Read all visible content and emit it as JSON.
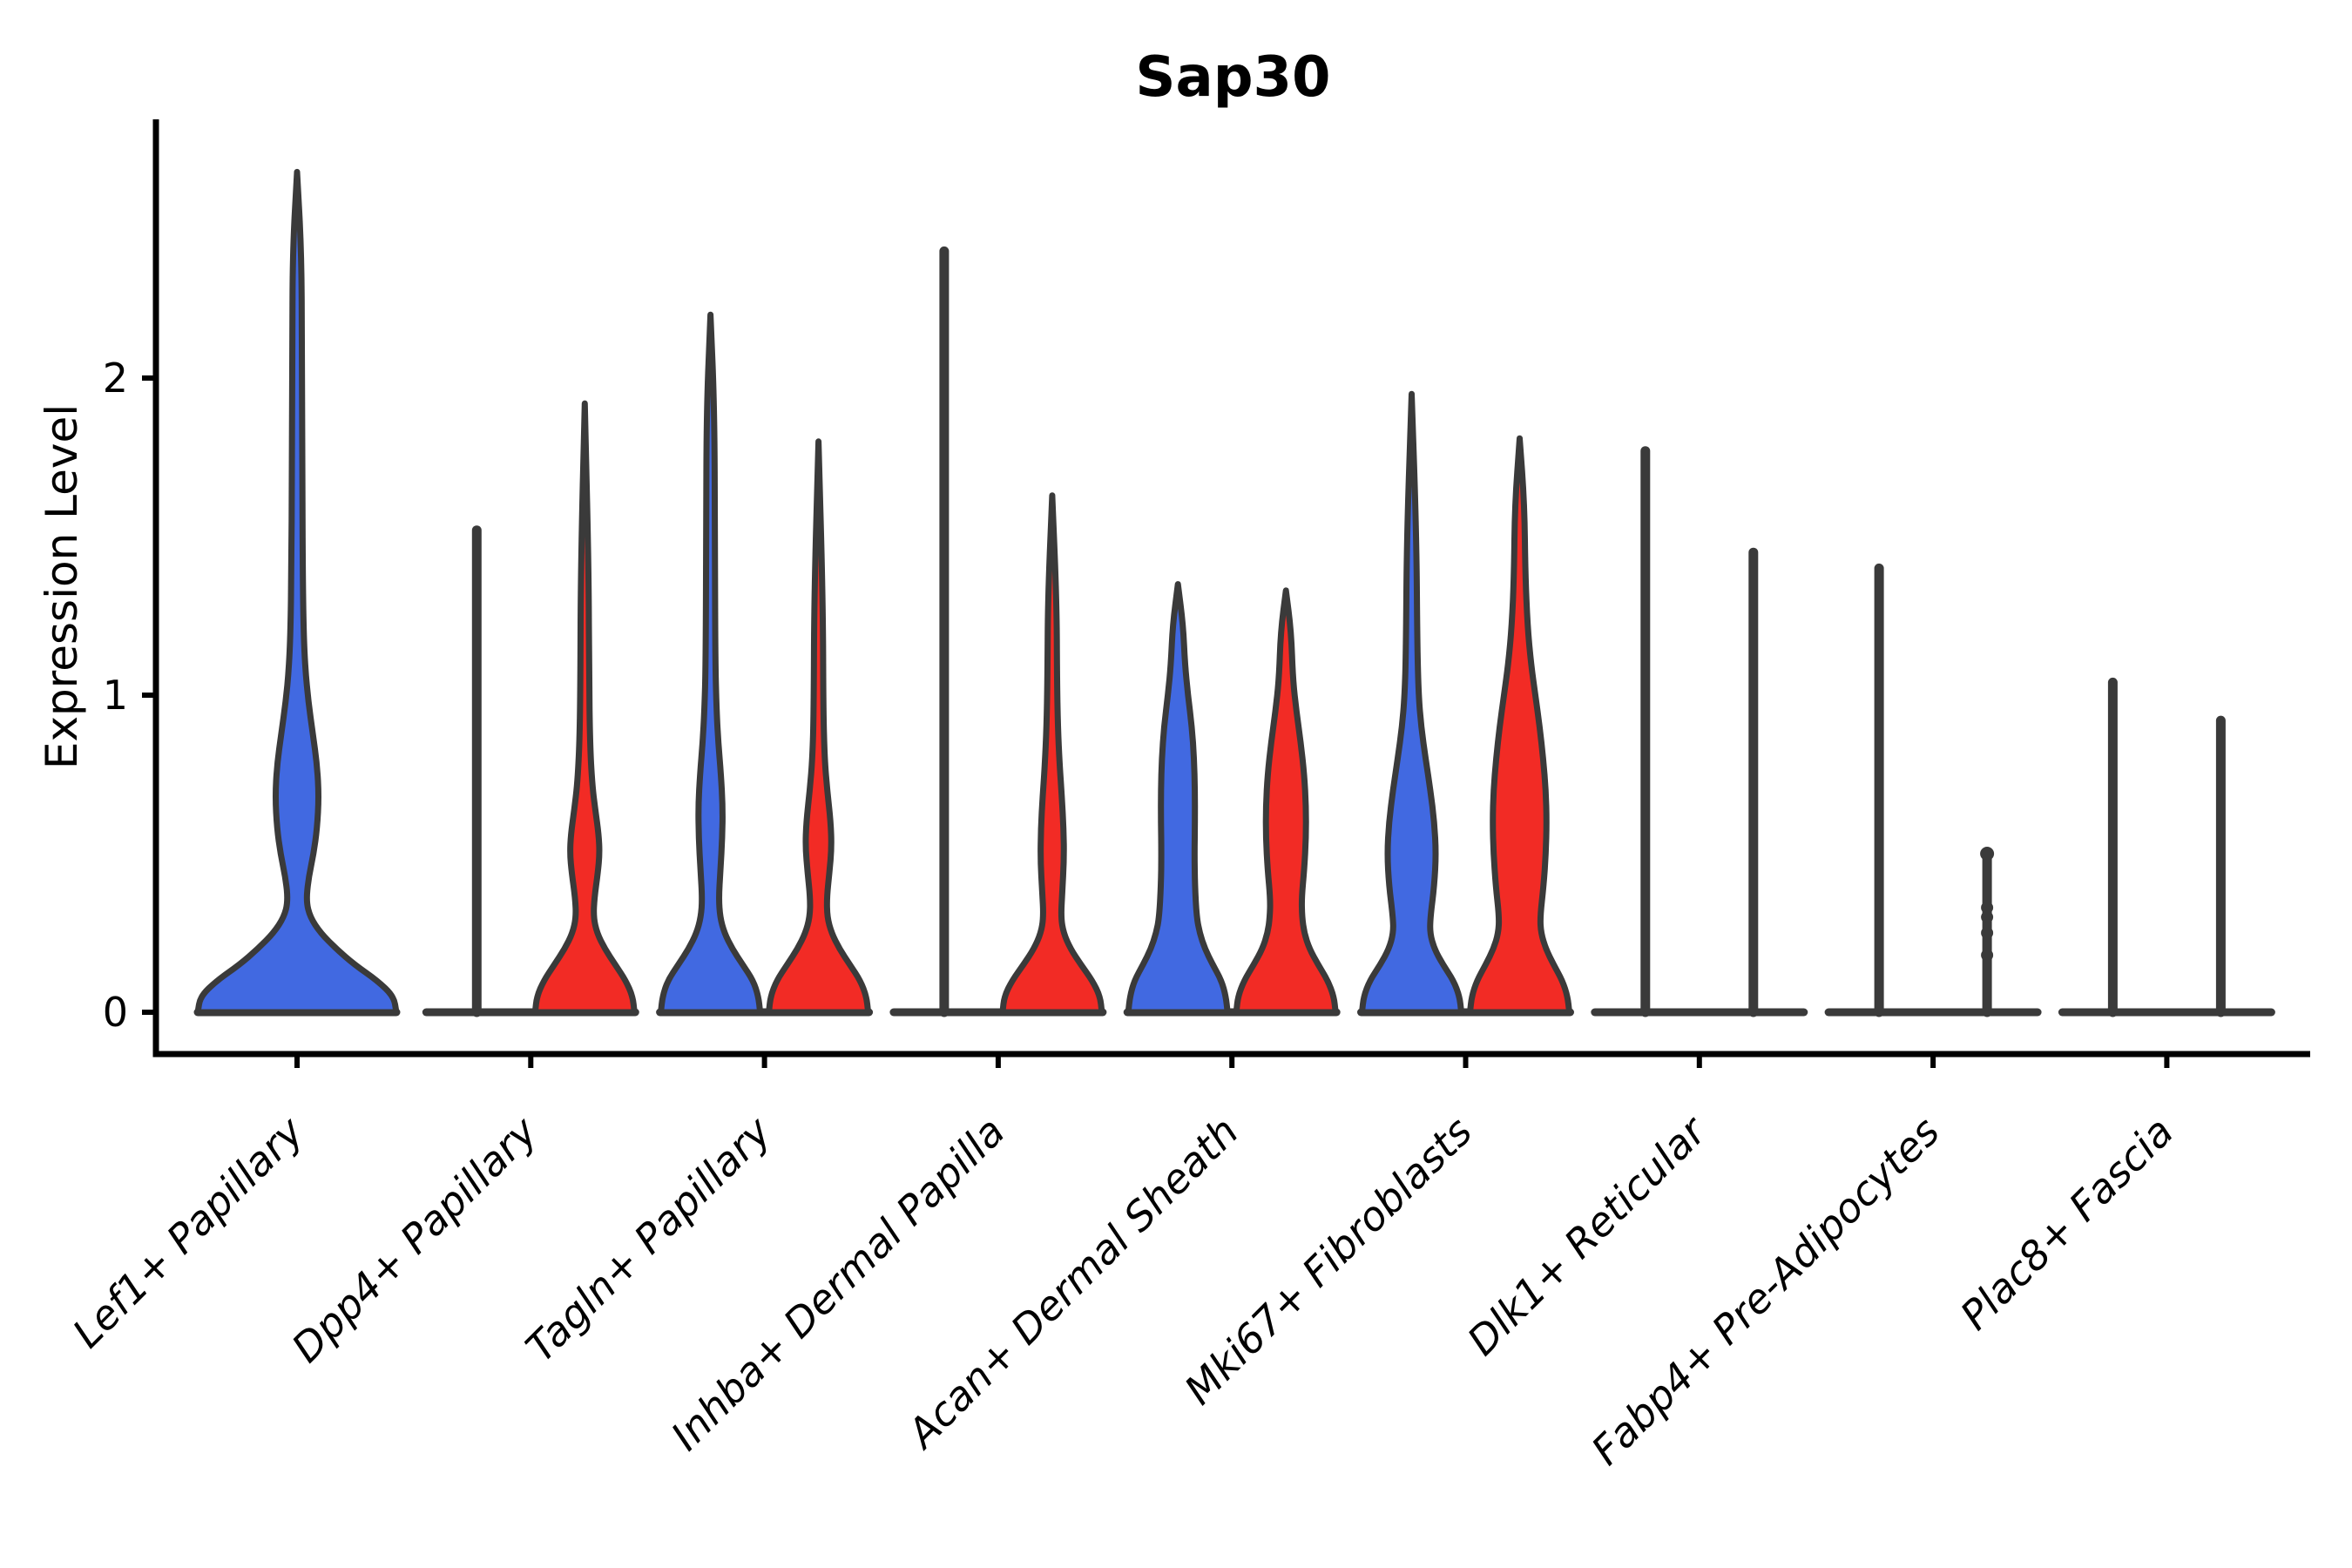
{
  "title": "Sap30",
  "y_axis": {
    "label": "Expression Level",
    "tick_labels": [
      "0",
      "1",
      "2"
    ]
  },
  "x_axis": {
    "labels": [
      "Lef1+ Papillary",
      "Dpp4+ Papillary",
      "Tagln+ Papillary",
      "Inhba+ Dermal Papilla",
      "Acan+ Dermal Sheath",
      "Mki67+ Fibroblasts",
      "Dlk1+ Reticular",
      "Fabp4+ Pre-Adipocytes",
      "Plac8+ Fascia"
    ]
  },
  "colors": {
    "group_a_fill": "#4169E1",
    "group_b_fill": "#F22B25",
    "violin_outline": "#3A3A3A",
    "axis": "#000000",
    "background": "#FFFFFF"
  },
  "chart_data": {
    "type": "violin",
    "title": "Sap30",
    "xlabel": "",
    "ylabel": "Expression Level",
    "ylim": [
      -0.13,
      2.81
    ],
    "yticks": [
      0,
      1,
      2
    ],
    "grid": false,
    "legend": "none",
    "groups": [
      "group_a_blue",
      "group_b_red"
    ],
    "categories": [
      "Lef1+ Papillary",
      "Dpp4+ Papillary",
      "Tagln+ Papillary",
      "Inhba+ Dermal Papilla",
      "Acan+ Dermal Sheath",
      "Mki67+ Fibroblasts",
      "Dlk1+ Reticular",
      "Fabp4+ Pre-Adipocytes",
      "Plac8+ Fascia"
    ],
    "series": [
      {
        "category": "Lef1+ Papillary",
        "violins": [
          {
            "group": "group_a_blue",
            "kind": "violin",
            "dx": 0,
            "max": 2.65,
            "profile": [
              [
                0,
                114
              ],
              [
                0.05,
                111
              ],
              [
                0.1,
                92
              ],
              [
                0.15,
                66
              ],
              [
                0.2,
                45
              ],
              [
                0.25,
                27
              ],
              [
                0.3,
                15
              ],
              [
                0.35,
                10.5
              ],
              [
                0.42,
                13
              ],
              [
                0.5,
                19
              ],
              [
                0.58,
                23
              ],
              [
                0.68,
                25
              ],
              [
                0.78,
                23
              ],
              [
                0.88,
                18
              ],
              [
                0.98,
                13
              ],
              [
                1.08,
                9.5
              ],
              [
                1.2,
                7.5
              ],
              [
                1.4,
                6.5
              ],
              [
                1.7,
                6
              ],
              [
                2.1,
                5.5
              ],
              [
                2.4,
                5
              ],
              [
                2.65,
                0
              ]
            ]
          }
        ]
      },
      {
        "category": "Dpp4+ Papillary",
        "violins": [
          {
            "group": "group_a_blue",
            "kind": "line",
            "dx": -62,
            "max": 1.52
          },
          {
            "group": "group_b_red",
            "kind": "violin",
            "dx": 62,
            "max": 1.92,
            "profile": [
              [
                0,
                57
              ],
              [
                0.05,
                55
              ],
              [
                0.1,
                47
              ],
              [
                0.15,
                35
              ],
              [
                0.2,
                23
              ],
              [
                0.25,
                14
              ],
              [
                0.3,
                10
              ],
              [
                0.36,
                11
              ],
              [
                0.44,
                15
              ],
              [
                0.5,
                17
              ],
              [
                0.56,
                16
              ],
              [
                0.64,
                12
              ],
              [
                0.72,
                8.5
              ],
              [
                0.85,
                6
              ],
              [
                1.05,
                5
              ],
              [
                1.4,
                4.5
              ],
              [
                1.92,
                0
              ]
            ]
          }
        ]
      },
      {
        "category": "Tagln+ Papillary",
        "violins": [
          {
            "group": "group_a_blue",
            "kind": "violin",
            "dx": -62,
            "max": 2.2,
            "profile": [
              [
                0,
                57
              ],
              [
                0.05,
                55
              ],
              [
                0.1,
                49
              ],
              [
                0.15,
                37
              ],
              [
                0.2,
                25
              ],
              [
                0.25,
                16
              ],
              [
                0.3,
                11
              ],
              [
                0.36,
                9.5
              ],
              [
                0.45,
                11.5
              ],
              [
                0.55,
                13.5
              ],
              [
                0.65,
                14
              ],
              [
                0.75,
                12
              ],
              [
                0.85,
                9
              ],
              [
                0.95,
                7
              ],
              [
                1.1,
                5.5
              ],
              [
                1.5,
                5
              ],
              [
                1.9,
                4.5
              ],
              [
                2.2,
                0
              ]
            ]
          },
          {
            "group": "group_b_red",
            "kind": "violin",
            "dx": 62,
            "max": 1.8,
            "profile": [
              [
                0,
                57
              ],
              [
                0.05,
                55
              ],
              [
                0.1,
                48
              ],
              [
                0.15,
                36
              ],
              [
                0.2,
                24
              ],
              [
                0.25,
                15
              ],
              [
                0.3,
                10
              ],
              [
                0.36,
                9.5
              ],
              [
                0.44,
                12.5
              ],
              [
                0.52,
                15
              ],
              [
                0.6,
                14
              ],
              [
                0.7,
                10
              ],
              [
                0.8,
                7
              ],
              [
                0.95,
                5.5
              ],
              [
                1.3,
                5
              ],
              [
                1.8,
                0
              ]
            ]
          }
        ]
      },
      {
        "category": "Inhba+ Dermal Papilla",
        "violins": [
          {
            "group": "group_a_blue",
            "kind": "line",
            "dx": -62,
            "max": 2.4
          },
          {
            "group": "group_b_red",
            "kind": "violin",
            "dx": 62,
            "max": 1.63,
            "profile": [
              [
                0,
                57
              ],
              [
                0.05,
                55
              ],
              [
                0.1,
                46
              ],
              [
                0.15,
                33
              ],
              [
                0.2,
                21
              ],
              [
                0.25,
                13
              ],
              [
                0.3,
                10
              ],
              [
                0.38,
                11.5
              ],
              [
                0.48,
                13.5
              ],
              [
                0.58,
                13
              ],
              [
                0.68,
                11
              ],
              [
                0.78,
                8.5
              ],
              [
                0.9,
                6.5
              ],
              [
                1.05,
                5.5
              ],
              [
                1.3,
                5
              ],
              [
                1.63,
                0
              ]
            ]
          }
        ]
      },
      {
        "category": "Acan+ Dermal Sheath",
        "violins": [
          {
            "group": "group_a_blue",
            "kind": "violin",
            "dx": -62,
            "max": 1.35,
            "profile": [
              [
                0,
                57
              ],
              [
                0.05,
                55
              ],
              [
                0.1,
                50
              ],
              [
                0.15,
                40
              ],
              [
                0.2,
                31
              ],
              [
                0.25,
                25
              ],
              [
                0.3,
                21.5
              ],
              [
                0.4,
                19.5
              ],
              [
                0.5,
                19
              ],
              [
                0.6,
                19.5
              ],
              [
                0.7,
                19.5
              ],
              [
                0.8,
                18.5
              ],
              [
                0.9,
                16
              ],
              [
                1.0,
                11.5
              ],
              [
                1.1,
                8
              ],
              [
                1.22,
                6
              ],
              [
                1.35,
                0
              ]
            ]
          },
          {
            "group": "group_b_red",
            "kind": "violin",
            "dx": 62,
            "max": 1.33,
            "profile": [
              [
                0,
                57
              ],
              [
                0.05,
                55
              ],
              [
                0.1,
                48
              ],
              [
                0.15,
                37
              ],
              [
                0.2,
                27
              ],
              [
                0.25,
                21
              ],
              [
                0.3,
                18.5
              ],
              [
                0.36,
                18
              ],
              [
                0.45,
                21
              ],
              [
                0.55,
                23
              ],
              [
                0.65,
                23
              ],
              [
                0.75,
                21
              ],
              [
                0.85,
                17
              ],
              [
                0.95,
                12
              ],
              [
                1.05,
                8
              ],
              [
                1.2,
                6
              ],
              [
                1.33,
                0
              ]
            ]
          }
        ]
      },
      {
        "category": "Mki67+ Fibroblasts",
        "violins": [
          {
            "group": "group_a_blue",
            "kind": "violin",
            "dx": -62,
            "max": 1.95,
            "profile": [
              [
                0,
                57
              ],
              [
                0.05,
                55
              ],
              [
                0.1,
                48
              ],
              [
                0.15,
                36
              ],
              [
                0.2,
                26
              ],
              [
                0.25,
                21
              ],
              [
                0.3,
                21.5
              ],
              [
                0.4,
                26
              ],
              [
                0.5,
                28
              ],
              [
                0.6,
                26
              ],
              [
                0.7,
                21.5
              ],
              [
                0.8,
                16
              ],
              [
                0.9,
                11
              ],
              [
                1.0,
                8
              ],
              [
                1.15,
                6.5
              ],
              [
                1.5,
                5.5
              ],
              [
                1.95,
                0
              ]
            ]
          },
          {
            "group": "group_b_red",
            "kind": "violin",
            "dx": 62,
            "max": 1.81,
            "profile": [
              [
                0,
                57
              ],
              [
                0.05,
                55
              ],
              [
                0.1,
                49
              ],
              [
                0.15,
                39
              ],
              [
                0.2,
                30
              ],
              [
                0.25,
                24.5
              ],
              [
                0.3,
                23.5
              ],
              [
                0.4,
                27.5
              ],
              [
                0.5,
                30
              ],
              [
                0.6,
                31
              ],
              [
                0.7,
                30
              ],
              [
                0.8,
                27
              ],
              [
                0.9,
                23
              ],
              [
                1.0,
                18
              ],
              [
                1.1,
                13
              ],
              [
                1.22,
                9
              ],
              [
                1.38,
                6.5
              ],
              [
                1.6,
                5.5
              ],
              [
                1.81,
                0
              ]
            ]
          }
        ]
      },
      {
        "category": "Dlk1+ Reticular",
        "violins": [
          {
            "group": "group_a_blue",
            "kind": "line",
            "dx": -62,
            "max": 1.77
          },
          {
            "group": "group_b_red",
            "kind": "line",
            "dx": 62,
            "max": 1.45
          }
        ]
      },
      {
        "category": "Fabp4+ Pre-Adipocytes",
        "violins": [
          {
            "group": "group_a_blue",
            "kind": "line",
            "dx": -62,
            "max": 1.4
          },
          {
            "group": "group_b_red",
            "kind": "line_points",
            "dx": 62,
            "max": 0.5,
            "dots": [
              0.5,
              0.33,
              0.3,
              0.25,
              0.18
            ]
          }
        ]
      },
      {
        "category": "Plac8+ Fascia",
        "violins": [
          {
            "group": "group_a_blue",
            "kind": "line",
            "dx": -62,
            "max": 1.04
          },
          {
            "group": "group_b_red",
            "kind": "line",
            "dx": 62,
            "max": 0.92
          }
        ]
      }
    ]
  }
}
